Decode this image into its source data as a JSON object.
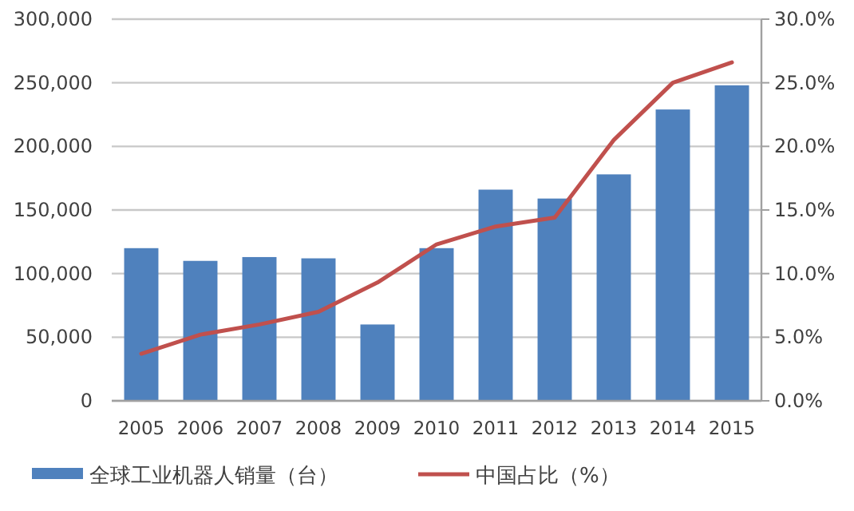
{
  "chart_data": {
    "type": "bar",
    "categories": [
      "2005",
      "2006",
      "2007",
      "2008",
      "2009",
      "2010",
      "2011",
      "2012",
      "2013",
      "2014",
      "2015"
    ],
    "series": [
      {
        "name": "全球工业机器人销量（台）",
        "color": "#4f81bd",
        "values": [
          120000,
          110000,
          113000,
          112000,
          60000,
          120000,
          166000,
          159000,
          178000,
          229000,
          248000
        ]
      },
      {
        "name": "中国占比（%）",
        "type": "line",
        "axis": "y2",
        "color": "#c0504d",
        "marker": "none",
        "line_style": "solid",
        "values": [
          3.7,
          5.2,
          6.0,
          7.0,
          9.3,
          12.3,
          13.7,
          14.4,
          20.5,
          25.0,
          26.6
        ]
      }
    ],
    "ylim": [
      0,
      300000
    ],
    "yticks": [
      0,
      {
        "value": 50000,
        "label": "50,000"
      },
      {
        "value": 100000,
        "label": "100,000"
      },
      {
        "value": 150000,
        "label": "150,000"
      },
      {
        "value": 200000,
        "label": "200,000"
      },
      {
        "value": 250000,
        "label": "250,000"
      },
      {
        "value": 300000,
        "label": "300,000"
      }
    ],
    "y2lim": [
      0,
      30
    ],
    "y2ticks": [
      {
        "value": 0,
        "label": "0.0%"
      },
      {
        "value": 5,
        "label": "5.0%"
      },
      {
        "value": 10,
        "label": "10.0%"
      },
      {
        "value": 15,
        "label": "15.0%"
      },
      {
        "value": 20,
        "label": "20.0%"
      },
      {
        "value": 25,
        "label": "25.0%"
      },
      {
        "value": 30,
        "label": "30.0%"
      }
    ],
    "grid": "y",
    "legend": "bottom"
  }
}
